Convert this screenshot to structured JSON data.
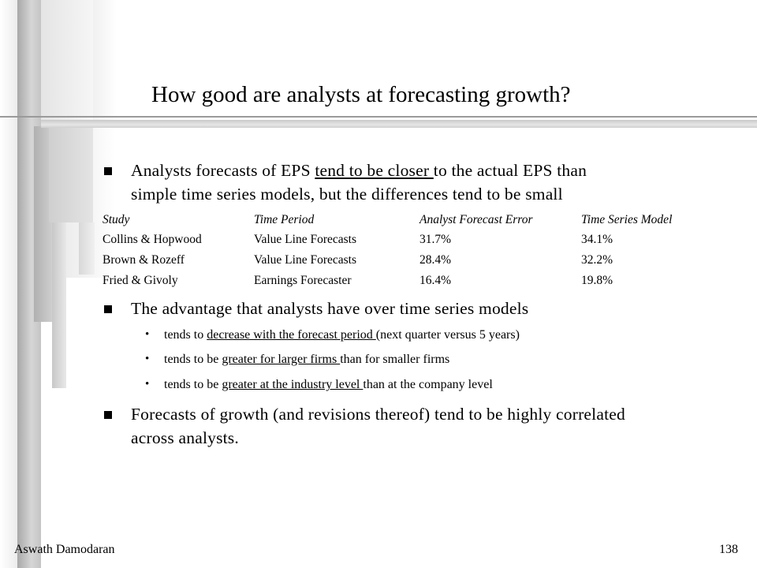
{
  "slide": {
    "title": "How good are analysts at forecasting growth?"
  },
  "bullet1": {
    "line1_pre": "Analysts forecasts of EPS ",
    "line1_underlined": "tend to be closer ",
    "line1_post": "to the actual EPS than",
    "line2": "simple time series models, but the differences tend to be small"
  },
  "table": {
    "headers": [
      "Study",
      "Time Period",
      "Analyst Forecast Error",
      "Time Series Model"
    ],
    "rows": [
      [
        "Collins & Hopwood",
        "Value Line Forecasts",
        "31.7%",
        "34.1%"
      ],
      [
        "Brown & Rozeff",
        "Value Line Forecasts",
        "28.4%",
        "32.2%"
      ],
      [
        "Fried & Givoly",
        "Earnings Forecaster",
        "16.4%",
        "19.8%"
      ]
    ]
  },
  "bullet2": {
    "text": "The advantage that analysts have over time series models",
    "sub": [
      {
        "pre": "tends to ",
        "underlined": "decrease with the forecast period ",
        "post": "(next quarter versus 5 years)"
      },
      {
        "pre": "tends to be ",
        "underlined": "greater for larger firms ",
        "post": "than for smaller firms"
      },
      {
        "pre": "tends to be ",
        "underlined": "greater at the industry level ",
        "post": "than at the company level"
      }
    ]
  },
  "bullet3": {
    "line1": "Forecasts of growth (and revisions thereof) tend to be highly correlated",
    "line2": "across analysts."
  },
  "footer": {
    "author": "Aswath Damodaran",
    "page": "138"
  }
}
